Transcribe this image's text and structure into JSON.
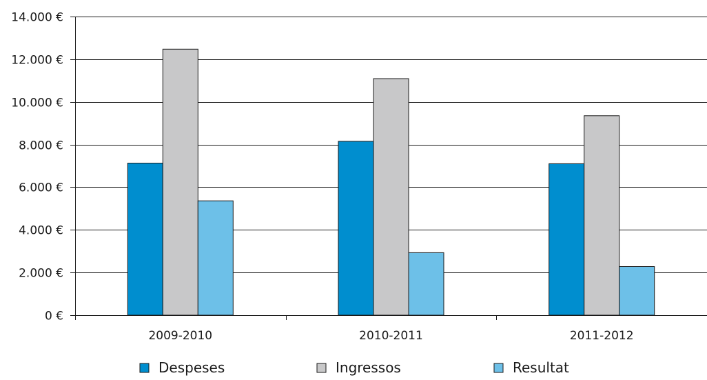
{
  "chart_data": {
    "type": "bar",
    "title": "",
    "xlabel": "",
    "ylabel": "",
    "categories": [
      "2009-2010",
      "2010-2011",
      "2011-2012"
    ],
    "series": [
      {
        "name": "Despeses",
        "values": [
          7130,
          8150,
          7100
        ],
        "color": "#008ecf"
      },
      {
        "name": "Ingressos",
        "values": [
          12470,
          11090,
          9350
        ],
        "color": "#c8c8c9"
      },
      {
        "name": "Resultat",
        "values": [
          5360,
          2930,
          2280
        ],
        "color": "#6dc0e8"
      }
    ],
    "ylim": [
      0,
      14000
    ],
    "yticks": [
      0,
      2000,
      4000,
      6000,
      8000,
      10000,
      12000,
      14000
    ],
    "ytick_labels": [
      "0 €",
      "2.000 €",
      "4.000 €",
      "6.000 €",
      "8.000 €",
      "10.000 €",
      "12.000 €",
      "14.000 €"
    ],
    "grid": true,
    "legend_position": "bottom"
  }
}
